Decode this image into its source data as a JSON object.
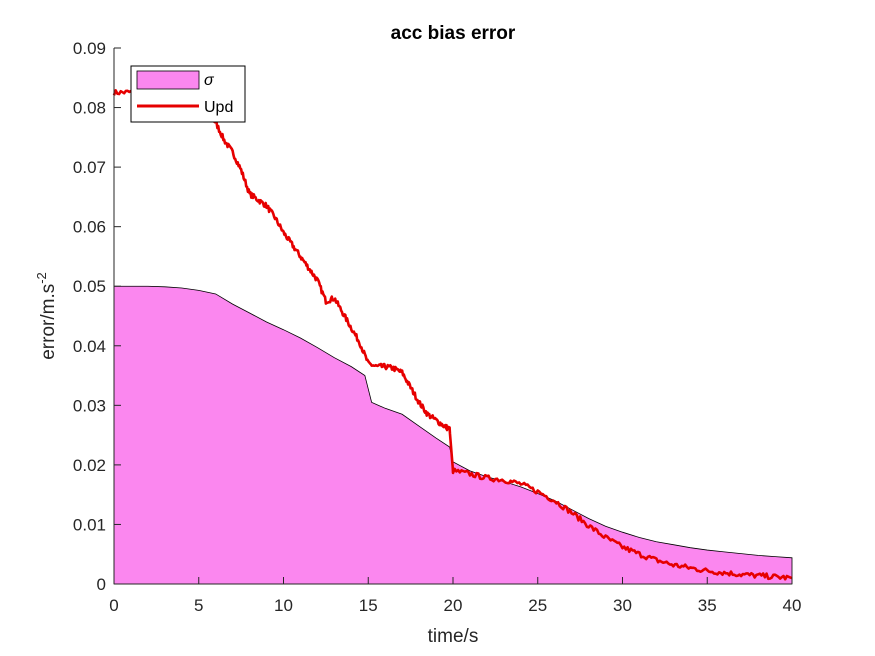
{
  "chart_data": {
    "type": "area",
    "title": "acc bias error",
    "xlabel": "time/s",
    "ylabel_base": "error/m.s",
    "ylabel_sup": "-2",
    "xlim": [
      0,
      40
    ],
    "ylim": [
      0,
      0.09
    ],
    "xticks": [
      0,
      5,
      10,
      15,
      20,
      25,
      30,
      35,
      40
    ],
    "xtick_labels": [
      "0",
      "5",
      "10",
      "15",
      "20",
      "25",
      "30",
      "35",
      "40"
    ],
    "yticks": [
      0,
      0.01,
      0.02,
      0.03,
      0.04,
      0.05,
      0.06,
      0.07,
      0.08,
      0.09
    ],
    "ytick_labels": [
      "0",
      "0.01",
      "0.02",
      "0.03",
      "0.04",
      "0.05",
      "0.06",
      "0.07",
      "0.08",
      "0.09"
    ],
    "grid": false,
    "legend_position": "top-left",
    "series": [
      {
        "name": "σ",
        "kind": "area",
        "fill_color": "#fb87ef",
        "edge_color": "#000000",
        "x": [
          0,
          1,
          2,
          3,
          4,
          5,
          6,
          7,
          8,
          9,
          10,
          11,
          12,
          13,
          14,
          14.8,
          15.2,
          16,
          17,
          18,
          19,
          19.8,
          20,
          21,
          22,
          23,
          24,
          25,
          26,
          27,
          28,
          29,
          30,
          31,
          32,
          33,
          34,
          35,
          36,
          37,
          38,
          39,
          40
        ],
        "values": [
          0.05,
          0.05,
          0.05,
          0.0499,
          0.0497,
          0.0493,
          0.0487,
          0.047,
          0.0455,
          0.044,
          0.0427,
          0.0413,
          0.0397,
          0.038,
          0.0365,
          0.035,
          0.0305,
          0.0295,
          0.0285,
          0.0265,
          0.0245,
          0.023,
          0.0205,
          0.019,
          0.018,
          0.0172,
          0.0163,
          0.0152,
          0.014,
          0.0125,
          0.011,
          0.0097,
          0.0087,
          0.0078,
          0.0071,
          0.0066,
          0.0061,
          0.0057,
          0.0054,
          0.0051,
          0.0048,
          0.0046,
          0.0044
        ]
      },
      {
        "name": "Upd",
        "kind": "line",
        "color": "#e60000",
        "x": [
          0,
          1,
          2,
          3,
          4,
          4.5,
          5,
          5.5,
          6,
          6.5,
          7,
          7.5,
          8,
          8.5,
          9,
          9.5,
          10,
          10.5,
          11,
          11.5,
          12,
          12.5,
          13,
          13.5,
          14,
          14.5,
          15,
          15.5,
          16,
          16.5,
          17,
          17.5,
          18,
          18.5,
          19,
          19.5,
          19.8,
          20,
          21,
          22,
          23,
          24,
          25,
          26,
          27,
          28,
          29,
          30,
          31,
          32,
          33,
          34,
          35,
          36,
          37,
          38,
          39,
          40
        ],
        "values": [
          0.0825,
          0.0826,
          0.0825,
          0.0824,
          0.082,
          0.081,
          0.08,
          0.079,
          0.0775,
          0.0745,
          0.0725,
          0.0695,
          0.0655,
          0.0645,
          0.0635,
          0.0615,
          0.059,
          0.057,
          0.055,
          0.053,
          0.051,
          0.0475,
          0.048,
          0.0455,
          0.043,
          0.0405,
          0.037,
          0.0365,
          0.0365,
          0.0362,
          0.0355,
          0.033,
          0.0305,
          0.0285,
          0.0275,
          0.0265,
          0.026,
          0.019,
          0.0185,
          0.0178,
          0.0175,
          0.0168,
          0.0155,
          0.014,
          0.012,
          0.0098,
          0.0078,
          0.0062,
          0.005,
          0.004,
          0.0032,
          0.0027,
          0.0022,
          0.0019,
          0.0016,
          0.0014,
          0.0012,
          0.001
        ]
      }
    ]
  }
}
